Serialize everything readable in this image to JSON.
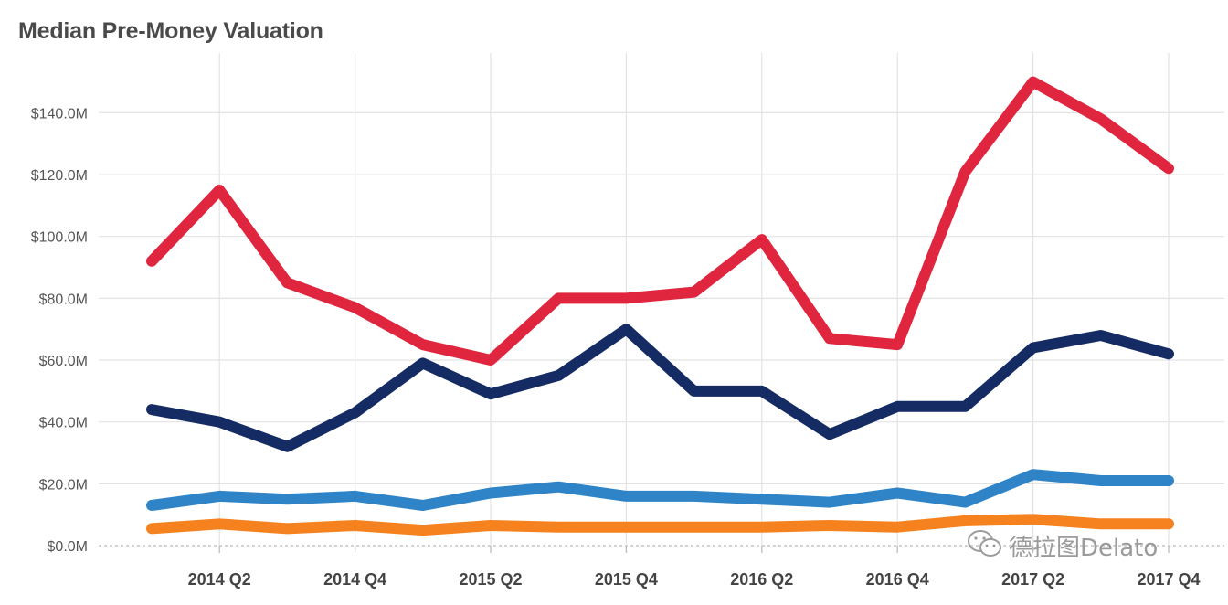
{
  "chart_data": {
    "type": "line",
    "title": "Median Pre-Money Valuation",
    "xlabel": "",
    "ylabel": "",
    "x": [
      "2014 Q1",
      "2014 Q2",
      "2014 Q3",
      "2014 Q4",
      "2015 Q1",
      "2015 Q2",
      "2015 Q3",
      "2015 Q4",
      "2016 Q1",
      "2016 Q2",
      "2016 Q3",
      "2016 Q4",
      "2017 Q1",
      "2017 Q2",
      "2017 Q3",
      "2017 Q4"
    ],
    "x_tick_labels": [
      "2014 Q2",
      "2014 Q4",
      "2015 Q2",
      "2015 Q4",
      "2016 Q2",
      "2016 Q4",
      "2017 Q2",
      "2017 Q4"
    ],
    "y_ticks": [
      0,
      20,
      40,
      60,
      80,
      100,
      120,
      140
    ],
    "y_tick_labels": [
      "$0.0M",
      "$20.0M",
      "$40.0M",
      "$60.0M",
      "$80.0M",
      "$100.0M",
      "$120.0M",
      "$140.0M"
    ],
    "ylim": [
      0,
      155
    ],
    "grid": true,
    "series": [
      {
        "color": "#e0263f",
        "values": [
          92,
          115,
          85,
          77,
          65,
          60,
          80,
          80,
          82,
          99,
          67,
          65,
          121,
          150,
          138,
          122
        ]
      },
      {
        "color": "#142b63",
        "values": [
          44,
          40,
          32,
          43,
          59,
          49,
          55,
          70,
          50,
          50,
          36,
          45,
          45,
          64,
          68,
          62
        ]
      },
      {
        "color": "#2f84c8",
        "values": [
          13,
          16,
          15,
          16,
          13,
          17,
          19,
          16,
          16,
          15,
          14,
          17,
          14,
          23,
          21,
          21
        ]
      },
      {
        "color": "#f5821f",
        "values": [
          5.5,
          7,
          5.5,
          6.5,
          5,
          6.5,
          6,
          6,
          6,
          6,
          6.5,
          6,
          8,
          8.5,
          7,
          7
        ]
      }
    ]
  },
  "watermark": {
    "text": "德拉图Delato",
    "icon": "wechat-icon"
  }
}
